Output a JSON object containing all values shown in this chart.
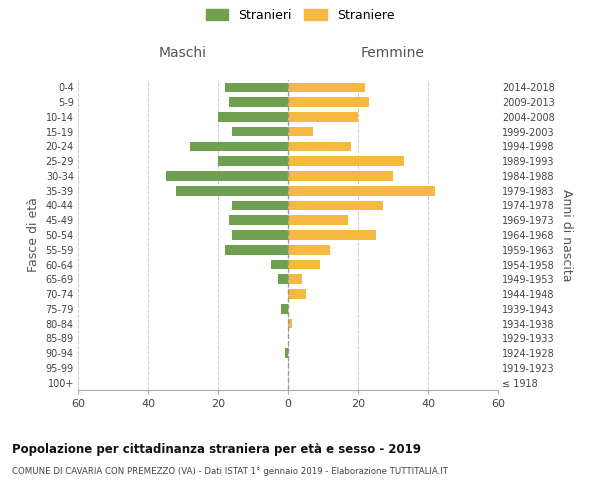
{
  "age_groups": [
    "100+",
    "95-99",
    "90-94",
    "85-89",
    "80-84",
    "75-79",
    "70-74",
    "65-69",
    "60-64",
    "55-59",
    "50-54",
    "45-49",
    "40-44",
    "35-39",
    "30-34",
    "25-29",
    "20-24",
    "15-19",
    "10-14",
    "5-9",
    "0-4"
  ],
  "birth_years": [
    "≤ 1918",
    "1919-1923",
    "1924-1928",
    "1929-1933",
    "1934-1938",
    "1939-1943",
    "1944-1948",
    "1949-1953",
    "1954-1958",
    "1959-1963",
    "1964-1968",
    "1969-1973",
    "1974-1978",
    "1979-1983",
    "1984-1988",
    "1989-1993",
    "1994-1998",
    "1999-2003",
    "2004-2008",
    "2009-2013",
    "2014-2018"
  ],
  "males": [
    0,
    0,
    1,
    0,
    0,
    2,
    0,
    3,
    5,
    18,
    16,
    17,
    16,
    32,
    35,
    20,
    28,
    16,
    20,
    17,
    18
  ],
  "females": [
    0,
    0,
    0,
    0,
    1,
    0,
    5,
    4,
    9,
    12,
    25,
    17,
    27,
    42,
    30,
    33,
    18,
    7,
    20,
    23,
    22
  ],
  "male_color": "#6fa052",
  "female_color": "#f5b942",
  "grid_color": "#cccccc",
  "dashed_line_color": "#999999",
  "title": "Popolazione per cittadinanza straniera per età e sesso - 2019",
  "subtitle": "COMUNE DI CAVARIA CON PREMEZZO (VA) - Dati ISTAT 1° gennaio 2019 - Elaborazione TUTTITALIA.IT",
  "xlabel_left": "Maschi",
  "xlabel_right": "Femmine",
  "ylabel_left": "Fasce di età",
  "ylabel_right": "Anni di nascita",
  "legend_male": "Stranieri",
  "legend_female": "Straniere",
  "xlim": 60,
  "background_color": "#ffffff",
  "figsize": [
    6.0,
    5.0
  ],
  "dpi": 100
}
